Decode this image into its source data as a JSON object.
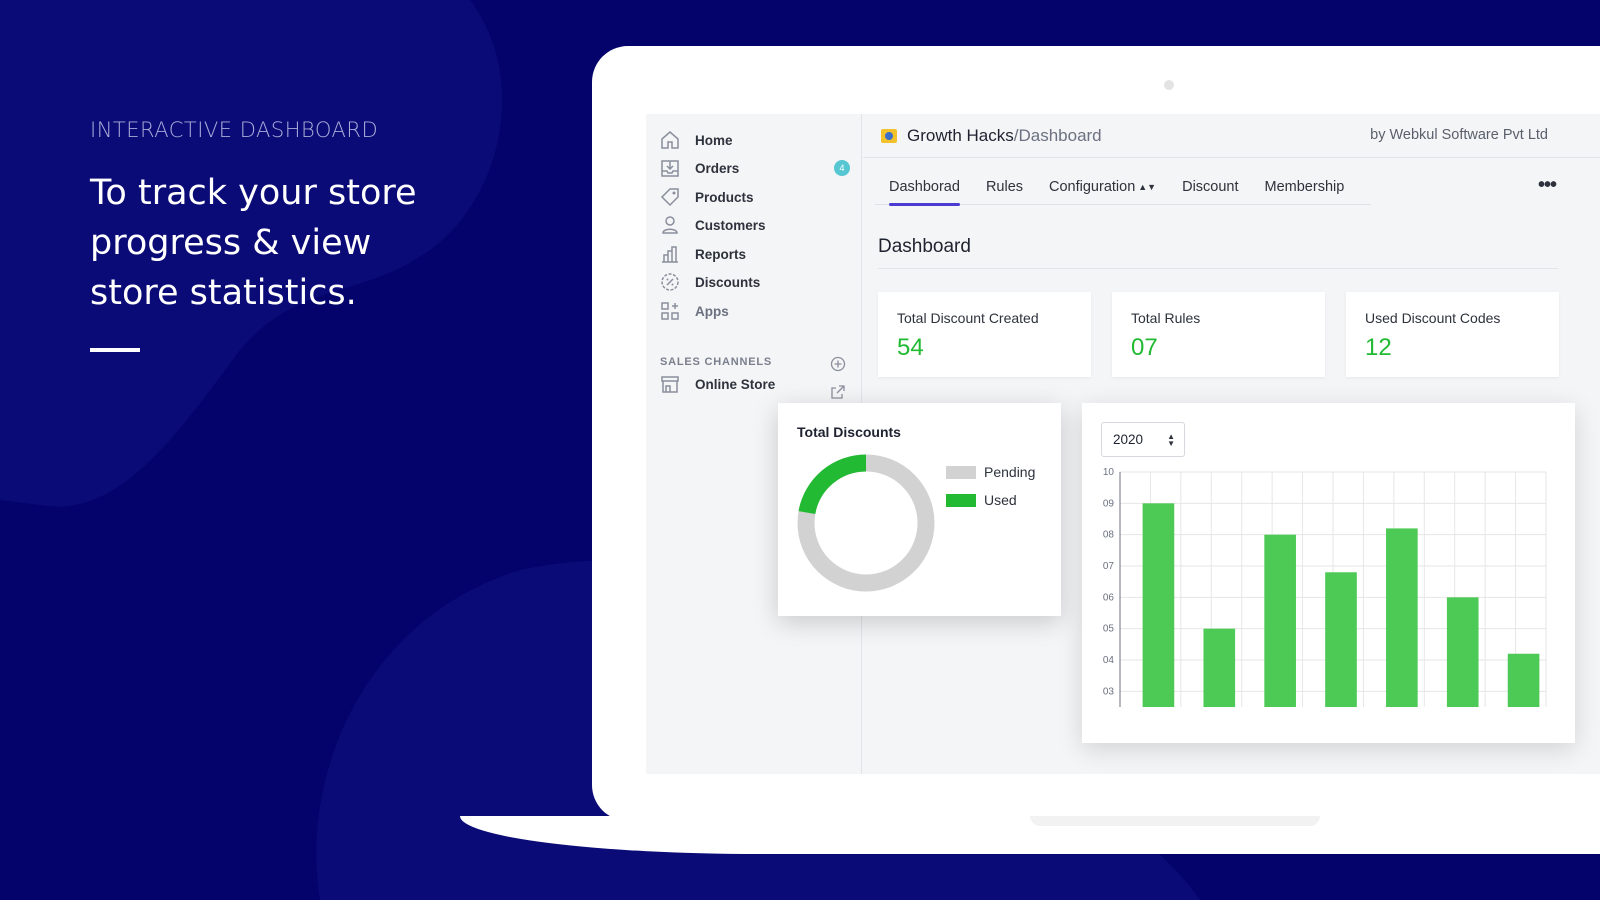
{
  "hero": {
    "kicker": "INTERACTIVE DASHBOARD",
    "headline_lines": [
      "To track your store",
      "progress & view",
      "store statistics."
    ]
  },
  "sidebar": {
    "items": [
      {
        "label": "Home",
        "icon": "home-icon"
      },
      {
        "label": "Orders",
        "icon": "orders-icon",
        "badge": "4"
      },
      {
        "label": "Products",
        "icon": "tag-icon"
      },
      {
        "label": "Customers",
        "icon": "person-icon"
      },
      {
        "label": "Reports",
        "icon": "bar-chart-icon"
      },
      {
        "label": "Discounts",
        "icon": "discount-icon"
      },
      {
        "label": "Apps",
        "icon": "apps-icon"
      }
    ],
    "sales_channels_label": "SALES CHANNELS",
    "online_store_label": "Online Store"
  },
  "header": {
    "app_name": "Growth Hacks",
    "app_sub": "/Dashboard",
    "by_line": "by Webkul Software Pvt Ltd"
  },
  "tabs": [
    {
      "label": "Dashborad",
      "active": true
    },
    {
      "label": "Rules"
    },
    {
      "label": "Configuration",
      "caret": true
    },
    {
      "label": "Discount"
    },
    {
      "label": "Membership"
    }
  ],
  "page_title": "Dashboard",
  "stats": [
    {
      "label": "Total Discount Created",
      "value": "54"
    },
    {
      "label": "Total Rules",
      "value": "07"
    },
    {
      "label": "Used Discount Codes",
      "value": "12"
    }
  ],
  "colors": {
    "accent_green": "#22b933",
    "bar_green": "#4dca56",
    "pending_gray": "#d2d2d2",
    "tab_active": "#4c3bd3",
    "background": "#03036b"
  },
  "chart_data": [
    {
      "type": "pie",
      "title": "Total Discounts",
      "labels": [
        "Pending",
        "Used"
      ],
      "values": [
        42,
        12
      ],
      "colors": [
        "#d2d2d2",
        "#22b933"
      ],
      "legend": "right"
    },
    {
      "type": "bar",
      "selected_year": "2020",
      "y_ticks": [
        "03",
        "04",
        "05",
        "06",
        "07",
        "08",
        "09",
        "10"
      ],
      "ylim": [
        2.5,
        10
      ],
      "values": [
        9.0,
        5.0,
        8.0,
        6.8,
        8.2,
        6.0,
        4.2
      ],
      "grid": true
    }
  ]
}
